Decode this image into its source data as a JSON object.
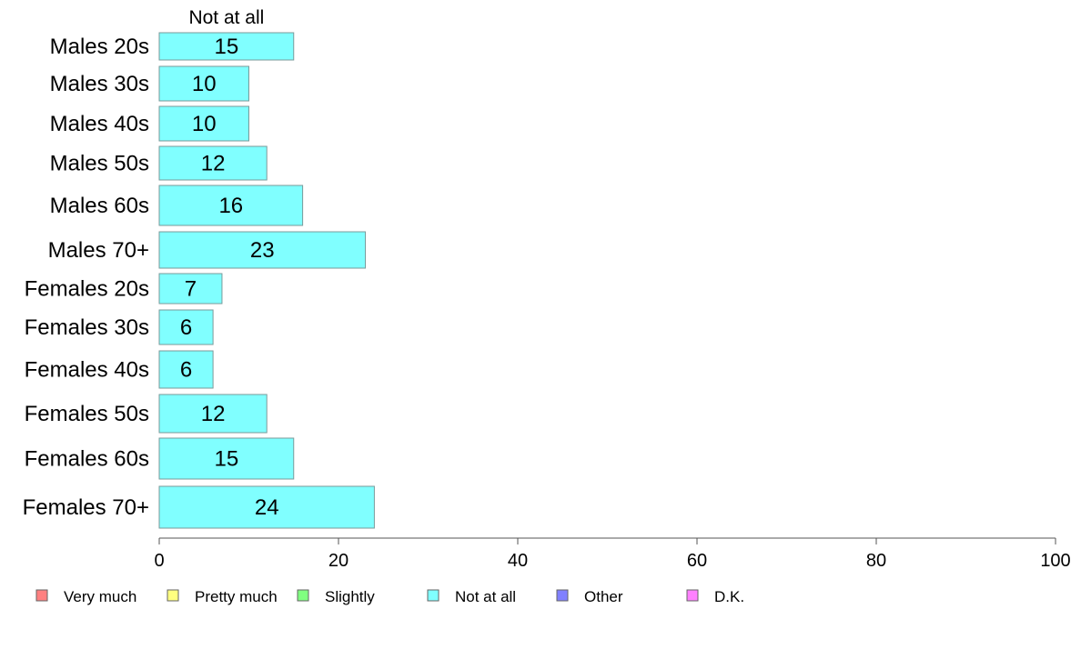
{
  "chart_data": {
    "type": "bar",
    "orientation": "horizontal",
    "stacked": true,
    "title": "",
    "xlabel": "",
    "ylabel": "",
    "xlim": [
      0,
      100
    ],
    "xticks": [
      0,
      20,
      40,
      60,
      80,
      100
    ],
    "grid": false,
    "legend_position": "bottom",
    "categories": [
      "Males 20s",
      "Males 30s",
      "Males 40s",
      "Males 50s",
      "Males 60s",
      "Males 70+",
      "Females 20s",
      "Females 30s",
      "Females 40s",
      "Females 50s",
      "Females 60s",
      "Females 70+"
    ],
    "series": [
      {
        "name": "Not at all",
        "color": "#80ffff",
        "values": [
          15,
          10,
          10,
          12,
          16,
          23,
          7,
          6,
          6,
          12,
          15,
          24
        ],
        "value_labels": [
          "15",
          "10",
          "10",
          "12",
          "16",
          "23",
          "7",
          "6",
          "6",
          "12",
          "15",
          "24"
        ]
      }
    ],
    "series_header": "Not at all",
    "legend": [
      {
        "label": "Very much",
        "color": "#ff8080"
      },
      {
        "label": "Pretty much",
        "color": "#ffff80"
      },
      {
        "label": "Slightly",
        "color": "#80ff80"
      },
      {
        "label": "Not at all",
        "color": "#80ffff"
      },
      {
        "label": "Other",
        "color": "#8080ff"
      },
      {
        "label": "D.K.",
        "color": "#ff80ff"
      }
    ]
  }
}
